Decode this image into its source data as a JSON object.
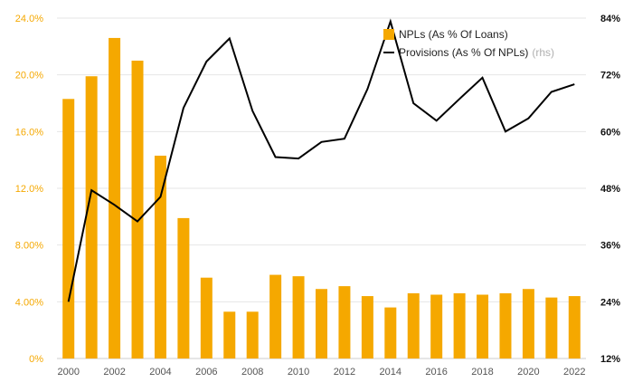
{
  "chart_data": {
    "type": "bar+line",
    "title": "",
    "xlabel": "",
    "x": [
      2000,
      2001,
      2002,
      2003,
      2004,
      2005,
      2006,
      2007,
      2008,
      2009,
      2010,
      2011,
      2012,
      2013,
      2014,
      2015,
      2016,
      2017,
      2018,
      2019,
      2020,
      2021,
      2022
    ],
    "x_tick_labels": [
      "2000",
      "2002",
      "2004",
      "2006",
      "2008",
      "2010",
      "2012",
      "2014",
      "2016",
      "2018",
      "2020",
      "2022"
    ],
    "series": [
      {
        "name": "NPLs (As % Of Loans)",
        "type": "bar",
        "axis": "left",
        "color": "#F5A800",
        "values": [
          18.3,
          19.9,
          22.6,
          21.0,
          14.3,
          9.9,
          5.7,
          3.3,
          3.3,
          5.9,
          5.8,
          4.9,
          5.1,
          4.4,
          3.6,
          4.6,
          4.5,
          4.6,
          4.5,
          4.6,
          4.9,
          4.3,
          4.4
        ]
      },
      {
        "name": "Provisions (As % Of NPLs)",
        "type": "line",
        "axis": "right",
        "color": "#000000",
        "values": [
          24.0,
          47.6,
          44.5,
          41.0,
          46.2,
          65.0,
          74.8,
          79.7,
          64.4,
          54.6,
          54.3,
          57.8,
          58.5,
          69.0,
          83.3,
          66.0,
          62.3,
          66.9,
          71.4,
          60.0,
          62.8,
          68.4,
          70.0
        ]
      }
    ],
    "y_left": {
      "min": 0,
      "max": 24,
      "ticks": [
        "0%",
        "4.00%",
        "8.00%",
        "12.0%",
        "16.0%",
        "20.0%",
        "24.0%"
      ]
    },
    "y_right": {
      "min": 12,
      "max": 84,
      "ticks": [
        "12%",
        "24%",
        "36%",
        "48%",
        "60%",
        "72%",
        "84%"
      ]
    },
    "legend": {
      "position": "top-right",
      "bar_label": "NPLs (As % Of Loans)",
      "line_label": "Provisions (As % Of NPLs)",
      "line_note": "(rhs)"
    },
    "colors": {
      "bar": "#F5A800",
      "line": "#000000",
      "grid": "#e6e6e6",
      "left_tick": "#F5A800",
      "right_tick": "#111111",
      "x_tick": "#555555"
    }
  }
}
